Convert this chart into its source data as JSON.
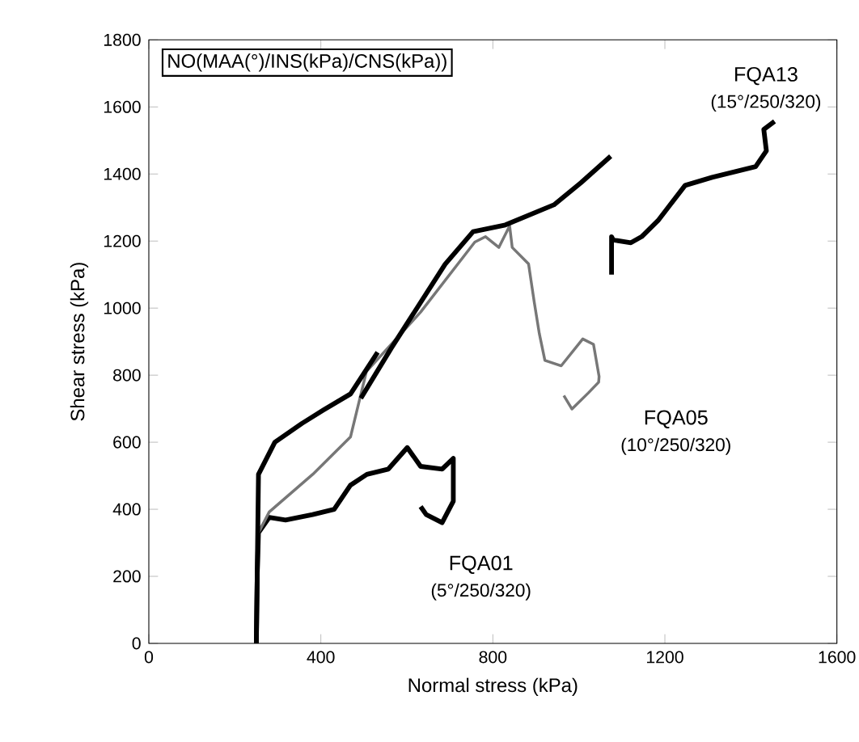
{
  "chart_data": {
    "type": "line",
    "xlabel": "Normal stress (kPa)",
    "ylabel": "Shear stress (kPa)",
    "xlim": [
      0,
      1600
    ],
    "xticks": [
      0,
      400,
      800,
      1200,
      1600
    ],
    "ylim": [
      0,
      1800
    ],
    "yticks": [
      0,
      200,
      400,
      600,
      800,
      1000,
      1200,
      1400,
      1600,
      1800
    ],
    "grid": false,
    "legend": false,
    "marker": "none",
    "line_style": "solid",
    "series": [
      {
        "name": "FQA01",
        "color": "#000000",
        "x": [
          250,
          252,
          255,
          280,
          318,
          381,
          431,
          469,
          507,
          557,
          601,
          632,
          682,
          708,
          708,
          682,
          645,
          632
        ],
        "values": [
          0,
          200,
          330,
          376,
          368,
          384,
          400,
          472,
          504,
          520,
          584,
          528,
          520,
          552,
          424,
          360,
          384,
          408
        ]
      },
      {
        "name": "FQA05",
        "color": "#777777",
        "x": [
          250,
          255,
          280,
          381,
          469,
          506,
          632,
          758,
          783,
          814,
          839,
          845,
          883,
          896,
          908,
          921,
          959,
          1009,
          1034,
          1047,
          1046,
          1022,
          984,
          965
        ],
        "values": [
          0,
          330,
          392,
          504,
          616,
          811,
          988,
          1197,
          1213,
          1181,
          1245,
          1181,
          1132,
          1020,
          924,
          844,
          828,
          908,
          892,
          796,
          779,
          747,
          699,
          739
        ]
      },
      {
        "name": "FQA13",
        "color": "#000000",
        "x": [
          250,
          252,
          255,
          293,
          356,
          406,
          469,
          532,
          null,
          493,
          563,
          689,
          754,
          829,
          942,
          1005,
          1074,
          null,
          1076,
          1076,
          1080,
          1121,
          1146,
          1184,
          1247,
          1310,
          1411,
          1436,
          1430,
          1455
        ],
        "values": [
          0,
          200,
          504,
          600,
          656,
          696,
          744,
          868,
          null,
          731,
          879,
          1131,
          1228,
          1248,
          1308,
          1374,
          1453,
          null,
          1100,
          1213,
          1203,
          1195,
          1213,
          1261,
          1366,
          1390,
          1422,
          1469,
          1533,
          1557
        ]
      }
    ],
    "annotations": [
      "NO(MAA(°)/INS(kPa)/CNS(kPa))",
      "(5°/250/320)",
      "(10°/250/320)",
      "(15°/250/320)"
    ]
  }
}
